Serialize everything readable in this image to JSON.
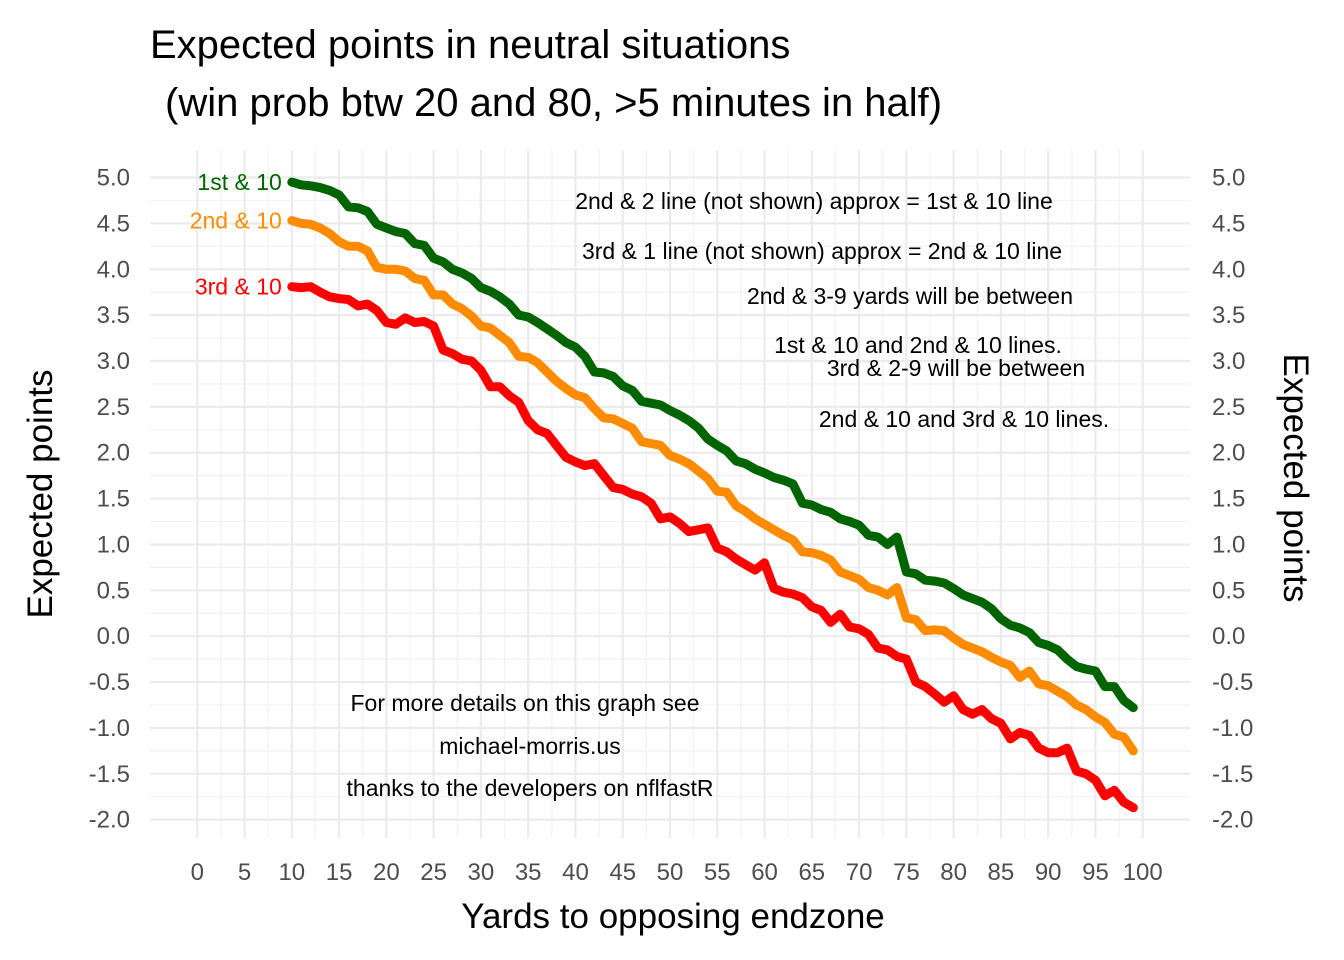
{
  "chart_data": {
    "type": "line",
    "title": "Expected points in neutral situations",
    "subtitle": "(win prob btw 20 and 80, >5 minutes in half)",
    "xlabel": "Yards to opposing endzone",
    "ylabel": "Expected points",
    "ylabel_right": "Expected points",
    "xlim": [
      -5,
      105
    ],
    "ylim": [
      -2.2,
      5.3
    ],
    "x_ticks": [
      0,
      5,
      10,
      15,
      20,
      25,
      30,
      35,
      40,
      45,
      50,
      55,
      60,
      65,
      70,
      75,
      80,
      85,
      90,
      95,
      100
    ],
    "y_ticks": [
      -2.0,
      -1.5,
      -1.0,
      -0.5,
      0.0,
      0.5,
      1.0,
      1.5,
      2.0,
      2.5,
      3.0,
      3.5,
      4.0,
      4.5,
      5.0
    ],
    "grid": true,
    "series": [
      {
        "name": "1st & 10",
        "color": "#006400",
        "x": [
          10,
          11,
          12,
          13,
          14,
          15,
          16,
          17,
          18,
          19,
          20,
          21,
          22,
          23,
          24,
          25,
          26,
          27,
          28,
          29,
          30,
          31,
          32,
          33,
          34,
          35,
          36,
          37,
          38,
          39,
          40,
          41,
          42,
          43,
          44,
          45,
          46,
          47,
          48,
          49,
          50,
          51,
          52,
          53,
          54,
          55,
          56,
          57,
          58,
          59,
          60,
          61,
          62,
          63,
          64,
          65,
          66,
          67,
          68,
          69,
          70,
          71,
          72,
          73,
          74,
          75,
          76,
          77,
          78,
          79,
          80,
          81,
          82,
          83,
          84,
          85,
          86,
          87,
          88,
          89,
          90,
          91,
          92,
          93,
          94,
          95,
          96,
          97,
          98,
          99
        ],
        "y": [
          4.95,
          4.92,
          4.91,
          4.89,
          4.86,
          4.81,
          4.68,
          4.67,
          4.63,
          4.49,
          4.45,
          4.41,
          4.39,
          4.28,
          4.26,
          4.12,
          4.08,
          4.0,
          3.96,
          3.9,
          3.8,
          3.76,
          3.7,
          3.62,
          3.5,
          3.48,
          3.42,
          3.35,
          3.28,
          3.2,
          3.15,
          3.05,
          2.88,
          2.87,
          2.83,
          2.73,
          2.68,
          2.56,
          2.54,
          2.52,
          2.46,
          2.41,
          2.35,
          2.27,
          2.15,
          2.08,
          2.02,
          1.91,
          1.88,
          1.82,
          1.78,
          1.73,
          1.7,
          1.66,
          1.45,
          1.43,
          1.38,
          1.35,
          1.28,
          1.25,
          1.21,
          1.1,
          1.08,
          1.0,
          1.08,
          0.7,
          0.68,
          0.61,
          0.6,
          0.58,
          0.52,
          0.45,
          0.41,
          0.37,
          0.3,
          0.19,
          0.12,
          0.09,
          0.04,
          -0.07,
          -0.1,
          -0.15,
          -0.25,
          -0.33,
          -0.36,
          -0.38,
          -0.55,
          -0.55,
          -0.7,
          -0.78
        ]
      },
      {
        "name": "2nd & 10",
        "color": "#FF8C00",
        "x": [
          10,
          11,
          12,
          13,
          14,
          15,
          16,
          17,
          18,
          19,
          20,
          21,
          22,
          23,
          24,
          25,
          26,
          27,
          28,
          29,
          30,
          31,
          32,
          33,
          34,
          35,
          36,
          37,
          38,
          39,
          40,
          41,
          42,
          43,
          44,
          45,
          46,
          47,
          48,
          49,
          50,
          51,
          52,
          53,
          54,
          55,
          56,
          57,
          58,
          59,
          60,
          61,
          62,
          63,
          64,
          65,
          66,
          67,
          68,
          69,
          70,
          71,
          72,
          73,
          74,
          75,
          76,
          77,
          78,
          79,
          80,
          81,
          82,
          83,
          84,
          85,
          86,
          87,
          88,
          89,
          90,
          91,
          92,
          93,
          94,
          95,
          96,
          97,
          98,
          99
        ],
        "y": [
          4.53,
          4.5,
          4.49,
          4.45,
          4.39,
          4.3,
          4.25,
          4.25,
          4.2,
          4.02,
          4.0,
          4.0,
          3.98,
          3.9,
          3.88,
          3.72,
          3.72,
          3.62,
          3.57,
          3.49,
          3.38,
          3.36,
          3.28,
          3.2,
          3.05,
          3.04,
          2.98,
          2.88,
          2.78,
          2.7,
          2.63,
          2.6,
          2.48,
          2.38,
          2.37,
          2.32,
          2.27,
          2.12,
          2.1,
          2.08,
          1.97,
          1.93,
          1.88,
          1.8,
          1.72,
          1.58,
          1.57,
          1.42,
          1.36,
          1.28,
          1.22,
          1.16,
          1.1,
          1.05,
          0.92,
          0.91,
          0.88,
          0.83,
          0.7,
          0.66,
          0.62,
          0.53,
          0.5,
          0.45,
          0.53,
          0.2,
          0.18,
          0.06,
          0.07,
          0.06,
          -0.02,
          -0.09,
          -0.13,
          -0.17,
          -0.23,
          -0.28,
          -0.32,
          -0.45,
          -0.38,
          -0.52,
          -0.54,
          -0.6,
          -0.66,
          -0.75,
          -0.8,
          -0.88,
          -0.94,
          -1.07,
          -1.1,
          -1.25
        ]
      },
      {
        "name": "3rd & 10",
        "color": "#FF0000",
        "x": [
          10,
          11,
          12,
          13,
          14,
          15,
          16,
          17,
          18,
          19,
          20,
          21,
          22,
          23,
          24,
          25,
          26,
          27,
          28,
          29,
          30,
          31,
          32,
          33,
          34,
          35,
          36,
          37,
          38,
          39,
          40,
          41,
          42,
          43,
          44,
          45,
          46,
          47,
          48,
          49,
          50,
          51,
          52,
          53,
          54,
          55,
          56,
          57,
          58,
          59,
          60,
          61,
          62,
          63,
          64,
          65,
          66,
          67,
          68,
          69,
          70,
          71,
          72,
          73,
          74,
          75,
          76,
          77,
          78,
          79,
          80,
          81,
          82,
          83,
          84,
          85,
          86,
          87,
          88,
          89,
          90,
          91,
          92,
          93,
          94,
          95,
          96,
          97,
          98,
          99
        ],
        "y": [
          3.81,
          3.8,
          3.81,
          3.75,
          3.7,
          3.68,
          3.67,
          3.6,
          3.62,
          3.55,
          3.42,
          3.4,
          3.47,
          3.42,
          3.43,
          3.38,
          3.12,
          3.08,
          3.02,
          3.0,
          2.9,
          2.72,
          2.72,
          2.62,
          2.55,
          2.35,
          2.25,
          2.21,
          2.08,
          1.95,
          1.9,
          1.86,
          1.88,
          1.75,
          1.62,
          1.6,
          1.55,
          1.52,
          1.45,
          1.28,
          1.3,
          1.23,
          1.14,
          1.16,
          1.18,
          0.96,
          0.92,
          0.84,
          0.78,
          0.72,
          0.8,
          0.52,
          0.48,
          0.46,
          0.42,
          0.32,
          0.28,
          0.15,
          0.24,
          0.1,
          0.08,
          0.02,
          -0.13,
          -0.15,
          -0.22,
          -0.25,
          -0.5,
          -0.55,
          -0.63,
          -0.72,
          -0.65,
          -0.8,
          -0.85,
          -0.8,
          -0.9,
          -0.95,
          -1.12,
          -1.05,
          -1.08,
          -1.22,
          -1.27,
          -1.27,
          -1.22,
          -1.47,
          -1.5,
          -1.57,
          -1.74,
          -1.68,
          -1.81,
          -1.87
        ]
      }
    ],
    "annotations": [
      {
        "text": "2nd & 2 line (not shown) approx = 1st & 10 line"
      },
      {
        "text": "3rd & 1 line (not shown) approx = 2nd & 10 line"
      },
      {
        "text": "2nd & 3-9 yards will be between"
      },
      {
        "text": "1st & 10 and 2nd & 10 lines."
      },
      {
        "text": "3rd & 2-9 will be between"
      },
      {
        "text": "2nd & 10 and 3rd & 10 lines."
      },
      {
        "text": "For more details on this graph see"
      },
      {
        "text": "michael-morris.us"
      },
      {
        "text": "thanks to the developers on nflfastR"
      }
    ]
  }
}
